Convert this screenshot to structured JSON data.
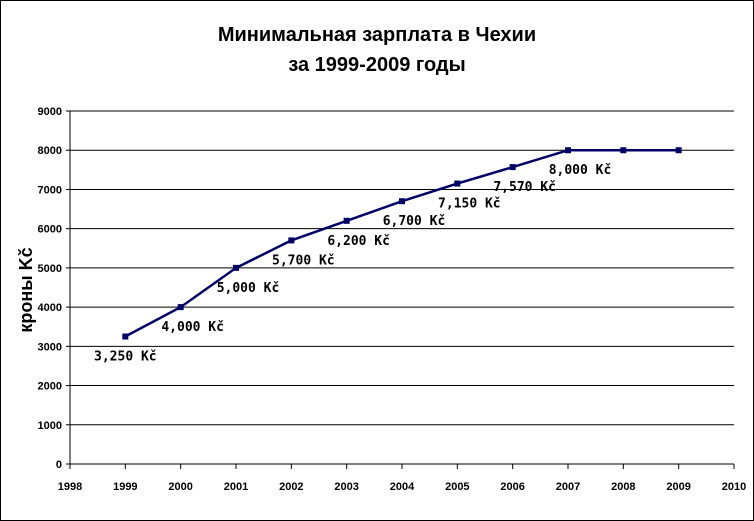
{
  "chart_data": {
    "type": "line",
    "title_line1": "Минимальная зарплата в Чехии",
    "title_line2": "за 1999-2009 годы",
    "xlabel": "",
    "ylabel": "кроны Kč",
    "xlim": [
      1998,
      2010
    ],
    "ylim": [
      0,
      9000
    ],
    "x_ticks": [
      1998,
      1999,
      2000,
      2001,
      2002,
      2003,
      2004,
      2005,
      2006,
      2007,
      2008,
      2009,
      2010
    ],
    "y_ticks": [
      0,
      1000,
      2000,
      3000,
      4000,
      5000,
      6000,
      7000,
      8000,
      9000
    ],
    "grid": "horizontal",
    "line_color": "#000066",
    "series": [
      {
        "x": [
          1999,
          2000,
          2001,
          2002,
          2003,
          2004,
          2005,
          2006,
          2007,
          2008,
          2009
        ],
        "values": [
          3250,
          4000,
          5000,
          5700,
          6200,
          6700,
          7150,
          7570,
          8000,
          8000,
          8000
        ],
        "data_labels": [
          "3,250 Kč",
          "4,000 Kč",
          "5,000 Kč",
          "5,700 Kč",
          "6,200 Kč",
          "6,700 Kč",
          "7,150 Kč",
          "7,570 Kč",
          "8,000 Kč",
          "",
          ""
        ]
      }
    ]
  }
}
